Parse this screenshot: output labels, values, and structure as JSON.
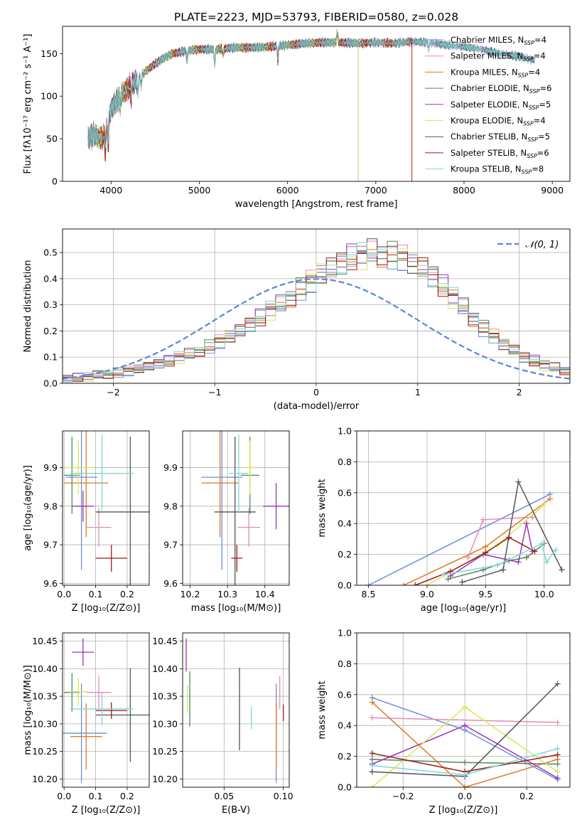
{
  "figure_title": "PLATE=2223, MJD=53793, FIBERID=0580, z=0.028",
  "colors": {
    "chabrier_miles": "#6b8fd6",
    "salpeter_miles": "#e68ab8",
    "kroupa_miles": "#e07a25",
    "chabrier_elodie": "#4f8a5a",
    "salpeter_elodie": "#9b35b8",
    "kroupa_elodie": "#d4e85a",
    "chabrier_stelib": "#555555",
    "salpeter_stelib": "#a01818",
    "kroupa_stelib": "#7fd6d6",
    "gaussian": "#5b86d8"
  },
  "chart_data": [
    {
      "id": "spectrum",
      "type": "line",
      "xlabel": "wavelength [Angstrom, rest frame]",
      "ylabel": "Flux [fλ10⁻¹⁷ erg cm⁻² s⁻¹ A⁻¹]",
      "xlim": [
        3450,
        9200
      ],
      "ylim": [
        0,
        182
      ],
      "xticks": [
        4000,
        5000,
        6000,
        7000,
        8000,
        9000
      ],
      "yticks": [
        0,
        50,
        100,
        150
      ],
      "legend_position": "right",
      "legend": [
        {
          "key": "chabrier_miles",
          "label": "Chabrier MILES, N",
          "sub": "SSP",
          "val": "=4",
          "end": 8800
        },
        {
          "key": "salpeter_miles",
          "label": "Salpeter MILES, N",
          "sub": "SSP",
          "val": "=4",
          "end": 8800
        },
        {
          "key": "kroupa_miles",
          "label": "Kroupa MILES, N",
          "sub": "SSP",
          "val": "=4",
          "end": 7410
        },
        {
          "key": "chabrier_elodie",
          "label": "Chabrier ELODIE, N",
          "sub": "SSP",
          "val": "=6",
          "end": 6800
        },
        {
          "key": "salpeter_elodie",
          "label": "Salpeter ELODIE, N",
          "sub": "SSP",
          "val": "=5",
          "end": 6800
        },
        {
          "key": "kroupa_elodie",
          "label": "Kroupa ELODIE, N",
          "sub": "SSP",
          "val": "=4",
          "end": 6800
        },
        {
          "key": "chabrier_stelib",
          "label": "Chabrier STELIB, N",
          "sub": "SSP",
          "val": "=5",
          "end": 8800
        },
        {
          "key": "salpeter_stelib",
          "label": "Salpeter STELIB, N",
          "sub": "SSP",
          "val": "=6",
          "end": 7410
        },
        {
          "key": "kroupa_stelib",
          "label": "Kroupa STELIB, N",
          "sub": "SSP",
          "val": "=8",
          "end": 8800
        }
      ],
      "continuum_x": [
        3740,
        3800,
        3900,
        3950,
        4000,
        4100,
        4200,
        4300,
        4400,
        4500,
        4600,
        4700,
        4800,
        4900,
        5000,
        5200,
        5400,
        5600,
        5800,
        6000,
        6200,
        6400,
        6600,
        6800,
        7000,
        7200,
        7400,
        7600,
        7800,
        8000,
        8200,
        8400,
        8600,
        8800
      ],
      "continuum_y": [
        50,
        55,
        50,
        60,
        85,
        100,
        110,
        120,
        130,
        138,
        145,
        150,
        152,
        154,
        155,
        155,
        157,
        157,
        158,
        160,
        162,
        163,
        163,
        162,
        163,
        162,
        164,
        163,
        160,
        158,
        155,
        150,
        147,
        142
      ]
    },
    {
      "id": "residuals",
      "type": "histogram",
      "xlabel": "(data-model)/error",
      "ylabel": "Normed distribution",
      "xlim": [
        -2.5,
        2.5
      ],
      "ylim": [
        0,
        0.59
      ],
      "xticks": [
        -2,
        -1,
        0,
        1,
        2
      ],
      "yticks": [
        0.0,
        0.1,
        0.2,
        0.3,
        0.4,
        0.5
      ],
      "grid": true,
      "legend_position": "top-right",
      "gaussian_label": "𝒩(0, 1)",
      "bin_width": 0.1,
      "bin_start": -2.5,
      "base_counts": [
        0.018,
        0.022,
        0.025,
        0.03,
        0.035,
        0.04,
        0.048,
        0.056,
        0.064,
        0.075,
        0.085,
        0.1,
        0.11,
        0.125,
        0.14,
        0.16,
        0.18,
        0.2,
        0.225,
        0.25,
        0.28,
        0.3,
        0.33,
        0.36,
        0.39,
        0.42,
        0.44,
        0.46,
        0.48,
        0.49,
        0.5,
        0.495,
        0.49,
        0.48,
        0.46,
        0.44,
        0.41,
        0.37,
        0.33,
        0.29,
        0.25,
        0.21,
        0.18,
        0.15,
        0.125,
        0.1,
        0.085,
        0.07,
        0.06,
        0.05
      ]
    },
    {
      "id": "z_vs_age",
      "type": "errorbar",
      "xlabel": "Z [log₁₀(Z/Z⊙)]",
      "ylabel": "age  [log₁₀(age/yr)]",
      "xlim": [
        -0.005,
        0.27
      ],
      "ylim": [
        9.595,
        9.995
      ],
      "xticks": [
        0.0,
        0.1,
        0.2
      ],
      "yticks": [
        9.6,
        9.7,
        9.8,
        9.9
      ],
      "points": [
        {
          "key": "chabrier_miles",
          "x": 0.055,
          "xerr": 0.05,
          "y": 9.875,
          "yerr": 0.24
        },
        {
          "key": "salpeter_miles",
          "x": 0.11,
          "xerr": 0.04,
          "y": 9.745,
          "yerr": 0.05
        },
        {
          "key": "kroupa_miles",
          "x": 0.07,
          "xerr": 0.07,
          "y": 9.86,
          "yerr": 0.14
        },
        {
          "key": "chabrier_elodie",
          "x": 0.025,
          "xerr": 0.025,
          "y": 9.88,
          "yerr": 0.1
        },
        {
          "key": "salpeter_elodie",
          "x": 0.06,
          "xerr": 0.035,
          "y": 9.8,
          "yerr": 0.04
        },
        {
          "key": "kroupa_elodie",
          "x": 0.045,
          "xerr": 0.05,
          "y": 9.9,
          "yerr": 0.07
        },
        {
          "key": "chabrier_stelib",
          "x": 0.21,
          "xerr": 0.11,
          "y": 9.785,
          "yerr": 0.195
        },
        {
          "key": "salpeter_stelib",
          "x": 0.15,
          "xerr": 0.05,
          "y": 9.665,
          "yerr": 0.035
        },
        {
          "key": "kroupa_stelib",
          "x": 0.12,
          "xerr": 0.1,
          "y": 9.885,
          "yerr": 0.1
        }
      ]
    },
    {
      "id": "mass_vs_age",
      "type": "errorbar",
      "xlabel": "mass [log₁₀(M/M⊙)]",
      "ylabel": "",
      "xlim": [
        10.18,
        10.465
      ],
      "ylim": [
        9.595,
        9.995
      ],
      "xticks": [
        10.2,
        10.3,
        10.4
      ],
      "yticks": [
        9.6,
        9.7,
        9.8,
        9.9
      ],
      "points": [
        {
          "key": "chabrier_miles",
          "x": 10.285,
          "xerr": 0.055,
          "y": 9.875,
          "yerr": 0.24
        },
        {
          "key": "salpeter_miles",
          "x": 10.357,
          "xerr": 0.03,
          "y": 9.745,
          "yerr": 0.05
        },
        {
          "key": "kroupa_miles",
          "x": 10.28,
          "xerr": 0.05,
          "y": 9.86,
          "yerr": 0.14
        },
        {
          "key": "chabrier_elodie",
          "x": 10.36,
          "xerr": 0.025,
          "y": 9.88,
          "yerr": 0.1
        },
        {
          "key": "salpeter_elodie",
          "x": 10.43,
          "xerr": 0.035,
          "y": 9.8,
          "yerr": 0.06
        },
        {
          "key": "kroupa_elodie",
          "x": 10.36,
          "xerr": 0.02,
          "y": 9.9,
          "yerr": 0.07
        },
        {
          "key": "chabrier_stelib",
          "x": 10.32,
          "xerr": 0.055,
          "y": 9.785,
          "yerr": 0.195
        },
        {
          "key": "salpeter_stelib",
          "x": 10.325,
          "xerr": 0.015,
          "y": 9.665,
          "yerr": 0.035
        },
        {
          "key": "kroupa_stelib",
          "x": 10.33,
          "xerr": 0.025,
          "y": 9.885,
          "yerr": 0.1
        }
      ]
    },
    {
      "id": "age_weights",
      "type": "line",
      "xlabel": "age  [log₁₀(age/yr)]",
      "ylabel": "mass weight",
      "xlim": [
        8.4,
        10.22
      ],
      "ylim": [
        0,
        1.0
      ],
      "xticks": [
        8.5,
        9.0,
        9.5,
        10.0
      ],
      "yticks": [
        0.0,
        0.2,
        0.4,
        0.6,
        0.8,
        1.0
      ],
      "grid": true,
      "series": [
        {
          "key": "chabrier_miles",
          "x": [
            8.5,
            10.05
          ],
          "y": [
            0.0,
            0.59
          ]
        },
        {
          "key": "salpeter_miles",
          "x": [
            9.35,
            9.48,
            9.9
          ],
          "y": [
            0.18,
            0.425,
            0.44
          ]
        },
        {
          "key": "kroupa_miles",
          "x": [
            8.8,
            9.5,
            10.05
          ],
          "y": [
            0.0,
            0.25,
            0.56
          ]
        },
        {
          "key": "chabrier_elodie",
          "x": [
            9.18,
            9.48,
            9.7,
            9.85,
            10.0
          ],
          "y": [
            0.04,
            0.1,
            0.16,
            0.18,
            0.27
          ]
        },
        {
          "key": "salpeter_elodie",
          "x": [
            9.2,
            9.48,
            9.78,
            9.85,
            9.9
          ],
          "y": [
            0.06,
            0.2,
            0.15,
            0.4,
            0.22
          ]
        },
        {
          "key": "kroupa_elodie",
          "x": [
            9.0,
            9.6,
            10.0
          ],
          "y": [
            0.0,
            0.26,
            0.52
          ]
        },
        {
          "key": "chabrier_stelib",
          "x": [
            9.3,
            9.65,
            9.78,
            10.15
          ],
          "y": [
            0.02,
            0.1,
            0.67,
            0.1
          ]
        },
        {
          "key": "salpeter_stelib",
          "x": [
            8.9,
            9.2,
            9.5,
            9.7,
            9.92
          ],
          "y": [
            0.0,
            0.09,
            0.21,
            0.31,
            0.22
          ]
        },
        {
          "key": "kroupa_stelib",
          "x": [
            9.15,
            9.6,
            9.98,
            10.02,
            10.1
          ],
          "y": [
            0.07,
            0.13,
            0.27,
            0.15,
            0.23
          ]
        }
      ]
    },
    {
      "id": "z_vs_mass",
      "type": "errorbar",
      "xlabel": "Z [log₁₀(Z/Z⊙)]",
      "ylabel": "mass [log₁₀(M/M⊙)]",
      "xlim": [
        -0.005,
        0.27
      ],
      "ylim": [
        10.185,
        10.465
      ],
      "xticks": [
        0.0,
        0.1,
        0.2
      ],
      "yticks": [
        10.2,
        10.25,
        10.3,
        10.35,
        10.4,
        10.45
      ],
      "points": [
        {
          "key": "chabrier_miles",
          "x": 0.055,
          "xerr": 0.08,
          "y": 10.283,
          "yerr": 0.09
        },
        {
          "key": "salpeter_miles",
          "x": 0.11,
          "xerr": 0.04,
          "y": 10.357,
          "yerr": 0.03
        },
        {
          "key": "kroupa_miles",
          "x": 0.07,
          "xerr": 0.05,
          "y": 10.277,
          "yerr": 0.06
        },
        {
          "key": "chabrier_elodie",
          "x": 0.025,
          "xerr": 0.025,
          "y": 10.357,
          "yerr": 0.035
        },
        {
          "key": "salpeter_elodie",
          "x": 0.06,
          "xerr": 0.035,
          "y": 10.43,
          "yerr": 0.025
        },
        {
          "key": "kroupa_elodie",
          "x": 0.045,
          "xerr": 0.03,
          "y": 10.358,
          "yerr": 0.025
        },
        {
          "key": "chabrier_stelib",
          "x": 0.21,
          "xerr": 0.11,
          "y": 10.316,
          "yerr": 0.085
        },
        {
          "key": "salpeter_stelib",
          "x": 0.15,
          "xerr": 0.05,
          "y": 10.324,
          "yerr": 0.015
        },
        {
          "key": "kroupa_stelib",
          "x": 0.12,
          "xerr": 0.1,
          "y": 10.327,
          "yerr": 0.03
        }
      ]
    },
    {
      "id": "ebv_vs_mass",
      "type": "errorbar",
      "xlabel": "E(B-V)",
      "ylabel": "",
      "xlim": [
        0.015,
        0.105
      ],
      "ylim": [
        10.185,
        10.465
      ],
      "xticks": [
        0.05,
        0.1
      ],
      "yticks": [
        10.2,
        10.25,
        10.3,
        10.35,
        10.4,
        10.45
      ],
      "points": [
        {
          "key": "chabrier_miles",
          "x": 0.094,
          "xerr": 0,
          "y": 10.283,
          "yerr": 0.09
        },
        {
          "key": "salpeter_miles",
          "x": 0.097,
          "xerr": 0,
          "y": 10.357,
          "yerr": 0.03
        },
        {
          "key": "kroupa_miles",
          "x": 0.094,
          "xerr": 0,
          "y": 10.277,
          "yerr": 0.06
        },
        {
          "key": "chabrier_elodie",
          "x": 0.021,
          "xerr": 0,
          "y": 10.345,
          "yerr": 0.05
        },
        {
          "key": "salpeter_elodie",
          "x": 0.018,
          "xerr": 0,
          "y": 10.425,
          "yerr": 0.03
        },
        {
          "key": "kroupa_elodie",
          "x": 0.019,
          "xerr": 0,
          "y": 10.345,
          "yerr": 0.025
        },
        {
          "key": "chabrier_stelib",
          "x": 0.063,
          "xerr": 0,
          "y": 10.327,
          "yerr": 0.075
        },
        {
          "key": "salpeter_stelib",
          "x": 0.1,
          "xerr": 0,
          "y": 10.32,
          "yerr": 0.015
        },
        {
          "key": "kroupa_stelib",
          "x": 0.073,
          "xerr": 0,
          "y": 10.31,
          "yerr": 0.02
        }
      ]
    },
    {
      "id": "z_weights",
      "type": "line",
      "xlabel": "Z [log₁₀(Z/Z⊙)]",
      "ylabel": "mass weight",
      "xlim": [
        -0.35,
        0.34
      ],
      "ylim": [
        0,
        1.0
      ],
      "xticks": [
        -0.2,
        0.0,
        0.2
      ],
      "yticks": [
        0.0,
        0.2,
        0.4,
        0.6,
        0.8,
        1.0
      ],
      "grid": true,
      "series": [
        {
          "key": "chabrier_miles",
          "x": [
            -0.3,
            0.0,
            0.3
          ],
          "y": [
            0.58,
            0.37,
            0.05
          ]
        },
        {
          "key": "salpeter_miles",
          "x": [
            -0.3,
            0.3
          ],
          "y": [
            0.45,
            0.42
          ]
        },
        {
          "key": "kroupa_miles",
          "x": [
            -0.3,
            0.0,
            0.3
          ],
          "y": [
            0.55,
            0.0,
            0.18
          ]
        },
        {
          "key": "chabrier_elodie",
          "x": [
            -0.3,
            0.0,
            0.3
          ],
          "y": [
            0.18,
            0.16,
            0.15
          ]
        },
        {
          "key": "salpeter_elodie",
          "x": [
            -0.3,
            0.0,
            0.3
          ],
          "y": [
            0.15,
            0.4,
            0.06
          ]
        },
        {
          "key": "kroupa_elodie",
          "x": [
            -0.3,
            0.0,
            0.3
          ],
          "y": [
            0.0,
            0.52,
            0.1
          ]
        },
        {
          "key": "chabrier_stelib",
          "x": [
            -0.3,
            0.0,
            0.3
          ],
          "y": [
            0.1,
            0.07,
            0.67
          ]
        },
        {
          "key": "salpeter_stelib",
          "x": [
            -0.3,
            0.0,
            0.3
          ],
          "y": [
            0.22,
            0.1,
            0.21
          ]
        },
        {
          "key": "kroupa_stelib",
          "x": [
            -0.3,
            0.0,
            0.3
          ],
          "y": [
            0.14,
            0.08,
            0.25
          ]
        }
      ]
    }
  ]
}
